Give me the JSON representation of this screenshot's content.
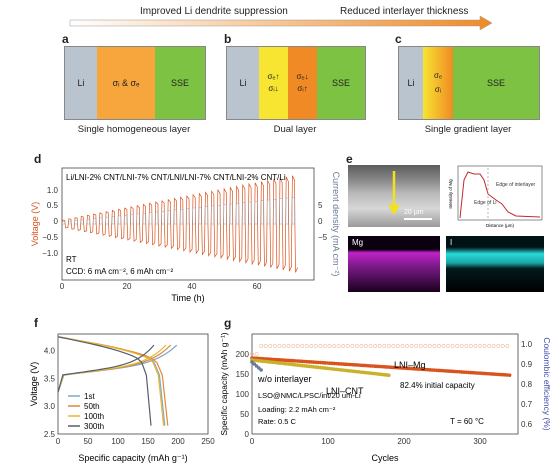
{
  "top_arrow": {
    "left_label": "Improved Li dendrite suppression",
    "right_label": "Reduced interlayer thickness"
  },
  "panel_a": {
    "letter": "a",
    "li": "Li",
    "layer": "σᵢ & σₑ",
    "sse": "SSE",
    "caption": "Single homogeneous layer",
    "colors": {
      "li": "#b9c4cf",
      "layer": "#f6a63c",
      "sse": "#7dc243"
    }
  },
  "panel_b": {
    "letter": "b",
    "li": "Li",
    "layer1_top": "σₑ↑",
    "layer1_bot": "σᵢ↓",
    "layer2_top": "σₑ↓",
    "layer2_bot": "σᵢ↑",
    "sse": "SSE",
    "caption": "Dual layer",
    "colors": {
      "li": "#b9c4cf",
      "layer1": "#f7e531",
      "layer2": "#f08a24",
      "sse": "#7dc243"
    }
  },
  "panel_c": {
    "letter": "c",
    "li": "Li",
    "layer_top": "σₑ",
    "layer_bot": "σᵢ",
    "sse": "SSE",
    "caption": "Single gradient layer"
  },
  "panel_d": {
    "letter": "d",
    "title": "Li/LNI-2% CNT/LNI-7% CNT/LNI/LNI-7% CNT/LNI-2% CNT/Li",
    "xlabel": "Time (h)",
    "ylabel_left": "Voltage (V)",
    "ylabel_right": "Current density (mA cm⁻²)",
    "note1": "RT",
    "note2": "CCD: 6 mA cm⁻², 6 mAh cm⁻²",
    "xticks": [
      "0",
      "20",
      "40",
      "60"
    ],
    "yticks_left": [
      "1.0",
      "0.5",
      "0",
      "−0.5",
      "−1.0"
    ],
    "yticks_right": [
      "5",
      "0",
      "−5"
    ]
  },
  "panel_e": {
    "letter": "e",
    "scale": "20 μm",
    "edge_interlayer": "Edge of interlayer",
    "edge_li": "Edge of Li",
    "map1": "Mg",
    "map2": "I",
    "plot_ylabel": "Intensity of Mg",
    "plot_xlabel": "Distance (μm)"
  },
  "chart_data": [
    {
      "type": "line",
      "panel": "f",
      "xlabel": "Specific capacity (mAh g⁻¹)",
      "ylabel": "Voltage (V)",
      "xlim": [
        0,
        250
      ],
      "ylim": [
        2.5,
        4.3
      ],
      "xticks": [
        "0",
        "50",
        "100",
        "150",
        "200",
        "250"
      ],
      "yticks": [
        "2.5",
        "3.0",
        "3.5",
        "4.0"
      ],
      "legend": [
        "1st",
        "50th",
        "100th",
        "300th"
      ],
      "series": [
        {
          "name": "1st",
          "color": "#7fa8c9",
          "charge_cap": 198,
          "discharge_cap": 178
        },
        {
          "name": "50th",
          "color": "#e0883a",
          "charge_cap": 188,
          "discharge_cap": 183
        },
        {
          "name": "100th",
          "color": "#e6b82c",
          "charge_cap": 180,
          "discharge_cap": 176
        },
        {
          "name": "300th",
          "color": "#555f6e",
          "charge_cap": 160,
          "discharge_cap": 155
        }
      ]
    },
    {
      "type": "scatter",
      "panel": "g",
      "xlabel": "Cycles",
      "ylabel": "Specific capacity (mAh g⁻¹)",
      "ylabel_right": "Coulombic efficiency (%)",
      "xlim": [
        0,
        350
      ],
      "ylim": [
        0,
        250
      ],
      "xticks": [
        "0",
        "100",
        "200",
        "300"
      ],
      "yticks": [
        "0",
        "50",
        "100",
        "150",
        "200"
      ],
      "yticks_right": [
        "0.6",
        "0.7",
        "0.8",
        "0.9",
        "1.0"
      ],
      "series": [
        {
          "name": "LNI–Mg",
          "color": "#d9531e",
          "start": [
            0,
            190
          ],
          "end": [
            340,
            147
          ]
        },
        {
          "name": "LNI–CNT",
          "color": "#c8b22c",
          "start": [
            0,
            185
          ],
          "end": [
            180,
            147
          ]
        },
        {
          "name": "w/o interlayer",
          "color": "#6a7a96",
          "start": [
            0,
            180
          ],
          "end": [
            12,
            160
          ]
        }
      ],
      "ce_color": "#f0b8a0"
    }
  ],
  "panel_f": {
    "letter": "f"
  },
  "panel_g": {
    "letter": "g",
    "label_mg": "LNI–Mg",
    "label_cnt": "LNI–CNT",
    "label_wo": "w/o interlayer",
    "retention": "82.4% initial capacity",
    "cell": "LSO@NMC/LPSC/int/20 um-Li",
    "loading": "Loading: 2.2 mAh cm⁻²",
    "rate": "Rate: 0.5 C",
    "temp": "T = 60 °C"
  }
}
